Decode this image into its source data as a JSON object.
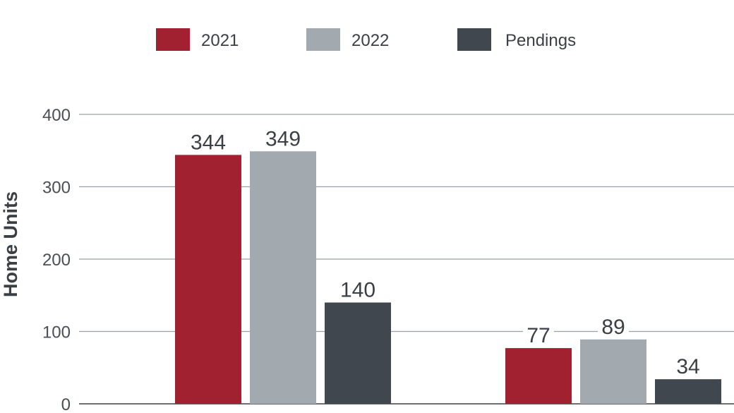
{
  "chart_data": {
    "type": "bar",
    "categories": [
      "",
      ""
    ],
    "series": [
      {
        "name": "2021",
        "values": [
          344,
          77
        ],
        "color": "#A12131"
      },
      {
        "name": "2022",
        "values": [
          349,
          89
        ],
        "color": "#A2AAB0"
      },
      {
        "name": "Pendings",
        "values": [
          140,
          34
        ],
        "color": "#40474E"
      }
    ],
    "ylabel": "Home Units",
    "xlabel": "",
    "ylim": [
      0,
      400
    ],
    "yticks": [
      0,
      100,
      200,
      300,
      400
    ],
    "grid": true,
    "legend_position": "top-center",
    "data_labels": true
  }
}
